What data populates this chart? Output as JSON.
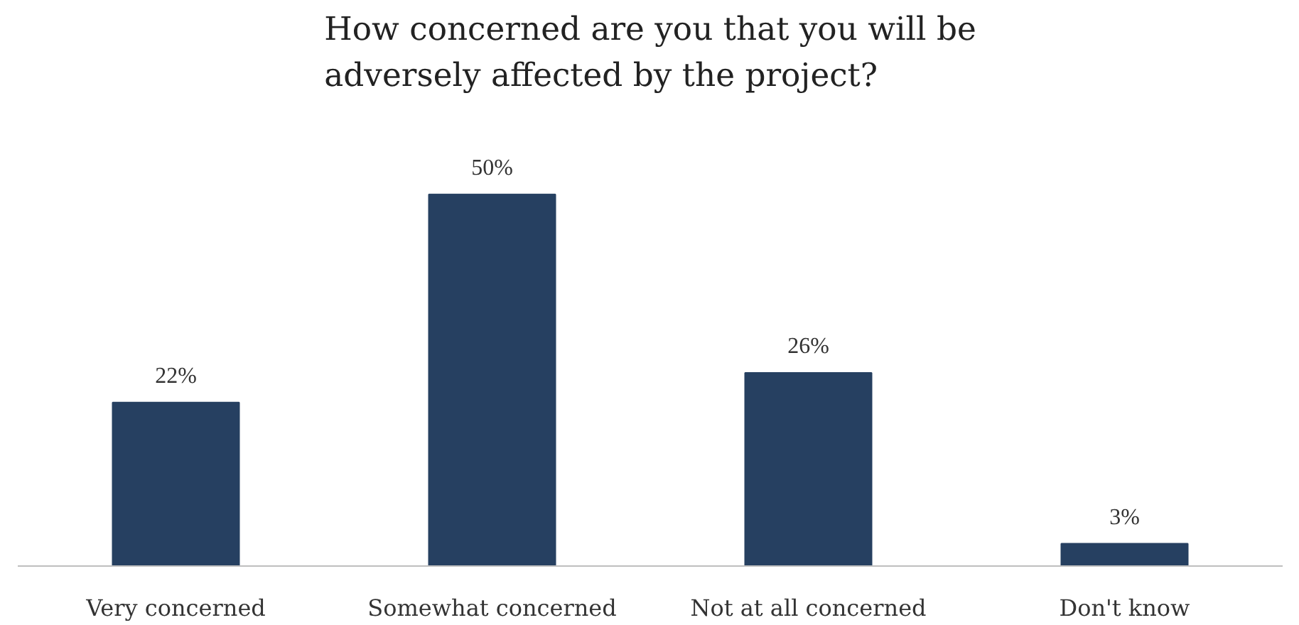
{
  "chart_data": {
    "type": "bar",
    "title": "How concerned are you that you will be adversely affected by the project?",
    "categories": [
      "Very concerned",
      "Somewhat concerned",
      "Not at all concerned",
      "Don't know"
    ],
    "values": [
      22,
      50,
      26,
      3
    ],
    "value_labels": [
      "22%",
      "50%",
      "26%",
      "3%"
    ],
    "color": "#264061",
    "grid": false
  }
}
